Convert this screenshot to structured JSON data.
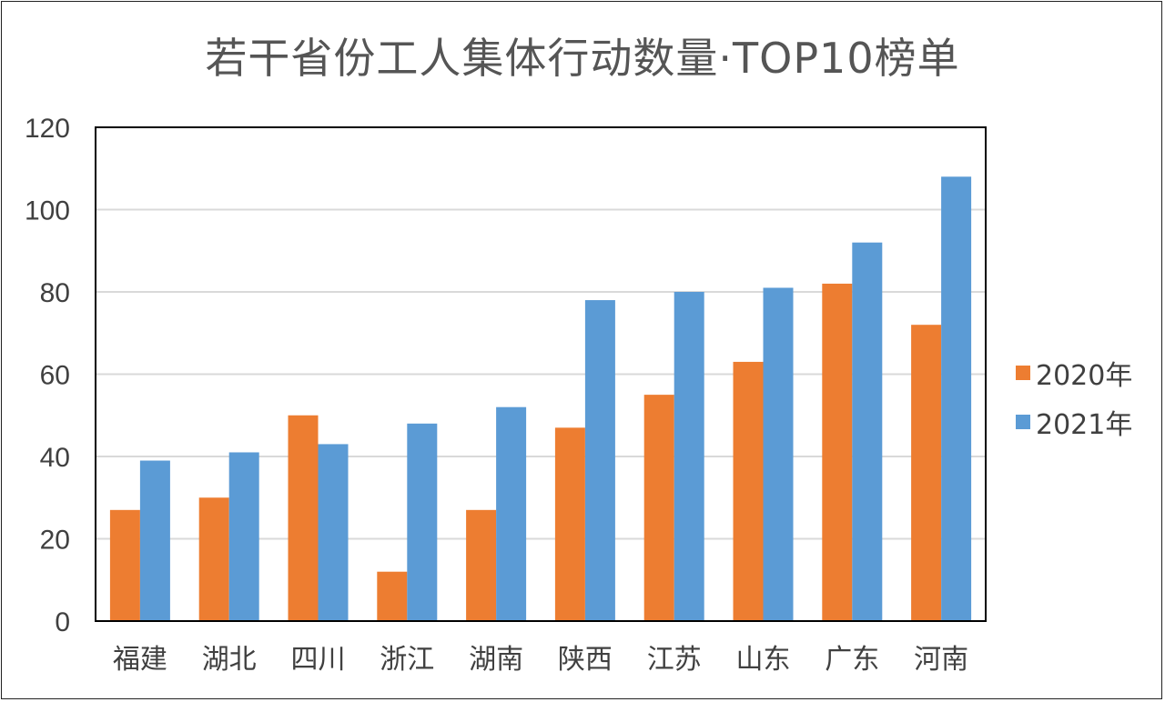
{
  "chart_data": {
    "type": "bar",
    "title": "若干省份工人集体行动数量·TOP10榜单",
    "categories": [
      "福建",
      "湖北",
      "四川",
      "浙江",
      "湖南",
      "陕西",
      "江苏",
      "山东",
      "广东",
      "河南"
    ],
    "series": [
      {
        "name": "2020年",
        "color": "#ED7D31",
        "values": [
          27,
          30,
          50,
          12,
          27,
          47,
          55,
          63,
          82,
          72
        ]
      },
      {
        "name": "2021年",
        "color": "#5B9BD5",
        "values": [
          39,
          41,
          43,
          48,
          52,
          78,
          80,
          81,
          92,
          108
        ]
      }
    ],
    "ylim": [
      0,
      120
    ],
    "yticks": [
      0,
      20,
      40,
      60,
      80,
      100,
      120
    ],
    "grid": true,
    "legend_position": "right",
    "xlabel": "",
    "ylabel": ""
  }
}
